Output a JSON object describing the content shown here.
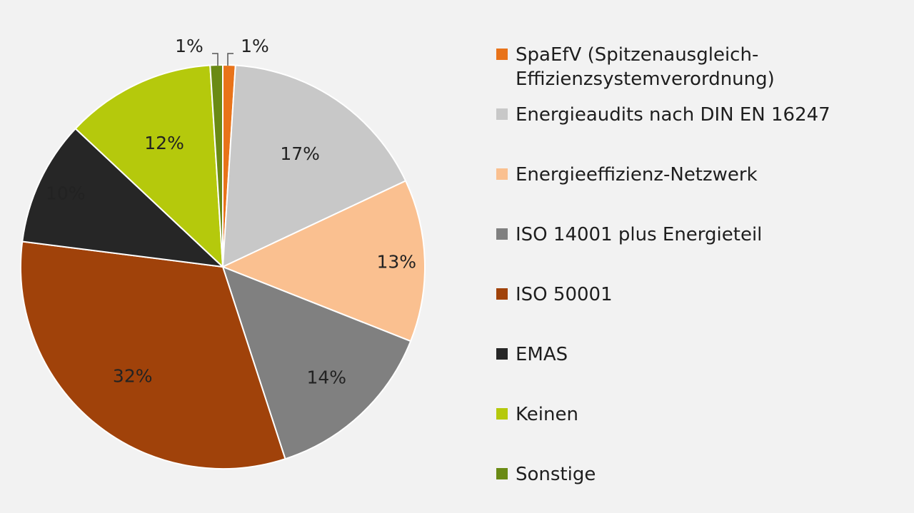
{
  "chart_data": {
    "type": "pie",
    "slices": [
      {
        "label": "SpaEfV (Spitzenausgleich-\nEffizienzsystemverordnung)",
        "value": 1,
        "value_label": "1%",
        "color": "#e8731a"
      },
      {
        "label": "Energieaudits nach DIN EN 16247",
        "value": 17,
        "value_label": "17%",
        "color": "#c8c8c8"
      },
      {
        "label": "Energieeffizienz-Netzwerk",
        "value": 13,
        "value_label": "13%",
        "color": "#fac090"
      },
      {
        "label": "ISO 14001 plus Energieteil",
        "value": 14,
        "value_label": "14%",
        "color": "#808080"
      },
      {
        "label": "ISO 50001",
        "value": 32,
        "value_label": "32%",
        "color": "#a0420a"
      },
      {
        "label": "EMAS",
        "value": 10,
        "value_label": "10%",
        "color": "#262626"
      },
      {
        "label": "Keinen",
        "value": 12,
        "value_label": "12%",
        "color": "#b5c90c"
      },
      {
        "label": "Sonstige",
        "value": 1,
        "value_label": "1%",
        "color": "#6a8a14"
      }
    ],
    "start_angle_deg": 0,
    "direction": "clockwise",
    "legend_position": "right"
  }
}
